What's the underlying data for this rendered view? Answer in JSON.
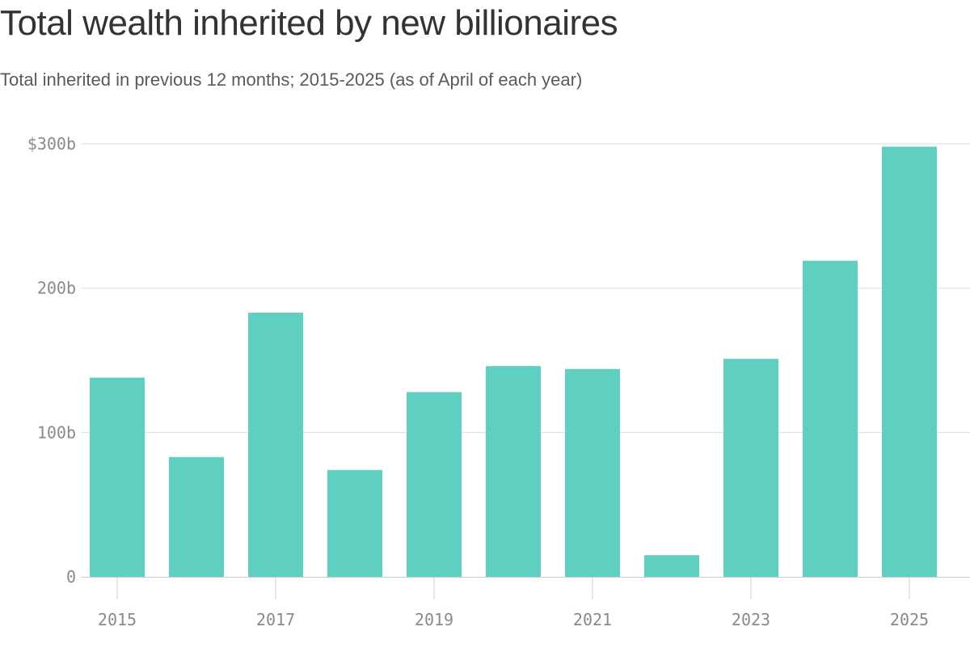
{
  "chart_data": {
    "type": "bar",
    "title": "Total wealth inherited by new billionaires",
    "subtitle": "Total inherited in previous 12 months; 2015-2025 (as of April of each year)",
    "xlabel": "",
    "ylabel": "",
    "categories": [
      "2015",
      "2016",
      "2017",
      "2018",
      "2019",
      "2020",
      "2021",
      "2022",
      "2023",
      "2024",
      "2025"
    ],
    "values": [
      138,
      83,
      183,
      74,
      128,
      146,
      144,
      15,
      151,
      219,
      298
    ],
    "x_tick_labels": [
      "2015",
      "",
      "2017",
      "",
      "2019",
      "",
      "2021",
      "",
      "2023",
      "",
      "2025"
    ],
    "y_ticks": [
      {
        "value": 300,
        "label": "$300b"
      },
      {
        "value": 200,
        "label": "200b"
      },
      {
        "value": 100,
        "label": "100b"
      },
      {
        "value": 0,
        "label": "0"
      }
    ],
    "ylim": [
      0,
      300
    ],
    "grid": true,
    "bar_color": "#5ecfc0",
    "grid_color": "#dddddd",
    "axis_color": "#cccccc"
  }
}
